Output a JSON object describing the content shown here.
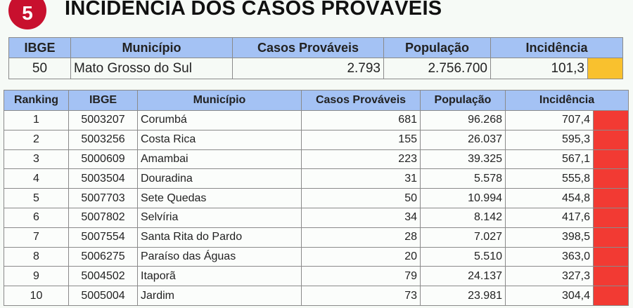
{
  "header": {
    "badge": "5",
    "title": "INCIDÊNCIA DOS CASOS PROVÁVEIS"
  },
  "summary": {
    "columns": [
      "IBGE",
      "Município",
      "Casos Prováveis",
      "População",
      "Incidência"
    ],
    "row": [
      "50",
      "Mato Grosso do Sul",
      "2.793",
      "2.756.700",
      "101,3"
    ]
  },
  "ranking": {
    "columns": [
      "Ranking",
      "IBGE",
      "Município",
      "Casos Prováveis",
      "População",
      "Incidência"
    ],
    "rows": [
      [
        "1",
        "5003207",
        "Corumbá",
        "681",
        "96.268",
        "707,4"
      ],
      [
        "2",
        "5003256",
        "Costa Rica",
        "155",
        "26.037",
        "595,3"
      ],
      [
        "3",
        "5000609",
        "Amambai",
        "223",
        "39.325",
        "567,1"
      ],
      [
        "4",
        "5003504",
        "Douradina",
        "31",
        "5.578",
        "555,8"
      ],
      [
        "5",
        "5007703",
        "Sete Quedas",
        "50",
        "10.994",
        "454,8"
      ],
      [
        "6",
        "5007802",
        "Selvíria",
        "34",
        "8.142",
        "417,6"
      ],
      [
        "7",
        "5007554",
        "Santa Rita do Pardo",
        "28",
        "7.027",
        "398,5"
      ],
      [
        "8",
        "5006275",
        "Paraíso das Águas",
        "20",
        "5.510",
        "363,0"
      ],
      [
        "9",
        "5004502",
        "Itaporã",
        "79",
        "24.137",
        "327,3"
      ],
      [
        "10",
        "5005004",
        "Jardim",
        "73",
        "23.981",
        "304,4"
      ]
    ]
  }
}
